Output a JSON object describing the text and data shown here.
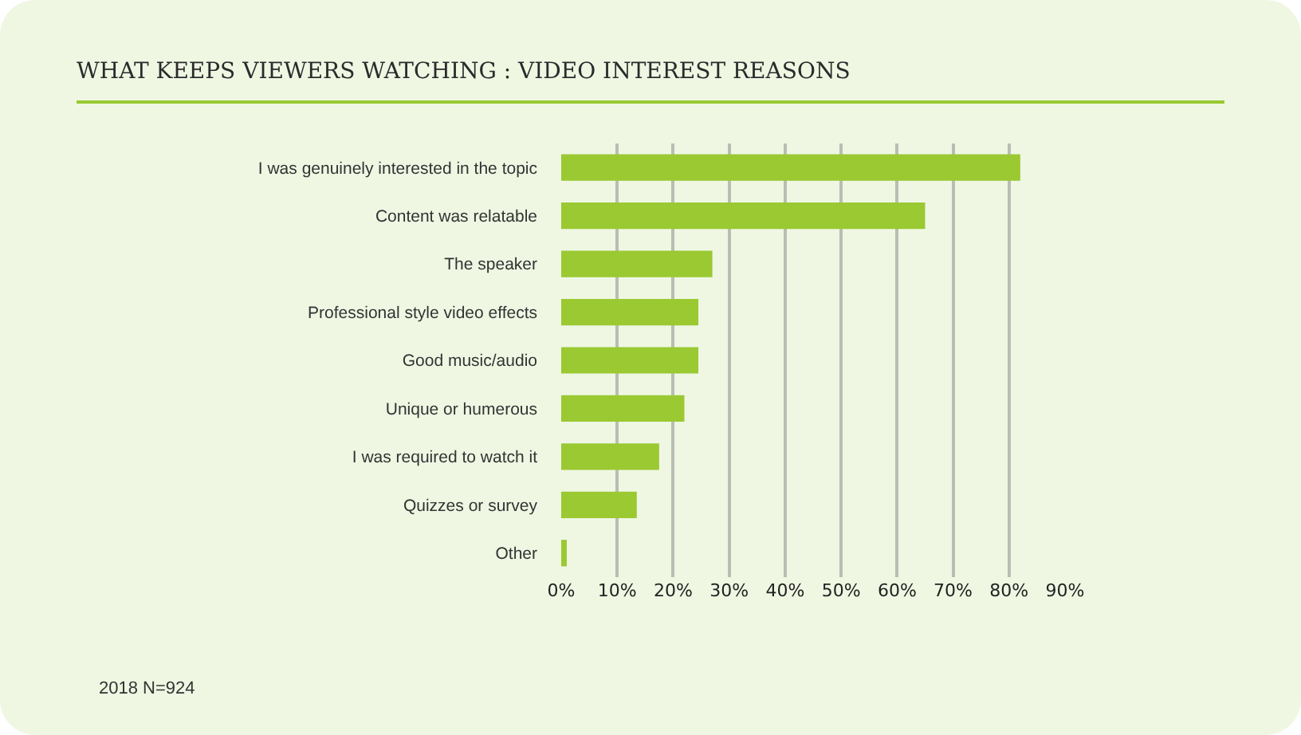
{
  "chart_data": {
    "type": "bar",
    "orientation": "horizontal",
    "title": "WHAT KEEPS VIEWERS WATCHING : VIDEO INTEREST REASONS",
    "categories": [
      "I was genuinely interested in the topic",
      "Content was relatable",
      "The speaker",
      "Professional style video effects",
      "Good music/audio",
      "Unique or humerous",
      "I was required to watch it",
      "Quizzes or survey",
      "Other"
    ],
    "values": [
      82,
      65,
      27,
      24.5,
      24.5,
      22,
      17.5,
      13.5,
      1
    ],
    "color": "#9ac932",
    "xlim": [
      0,
      90
    ],
    "xticks": [
      {
        "value": 0,
        "label": "0%"
      },
      {
        "value": 10,
        "label": "10%"
      },
      {
        "value": 20,
        "label": "20%"
      },
      {
        "value": 30,
        "label": "30%"
      },
      {
        "value": 40,
        "label": "40%"
      },
      {
        "value": 50,
        "label": "50%"
      },
      {
        "value": 60,
        "label": "60%"
      },
      {
        "value": 70,
        "label": "70%"
      },
      {
        "value": 80,
        "label": "80%"
      },
      {
        "value": 90,
        "label": "90%"
      }
    ],
    "grid": "x",
    "annotations": [
      "2018 N=924"
    ]
  }
}
